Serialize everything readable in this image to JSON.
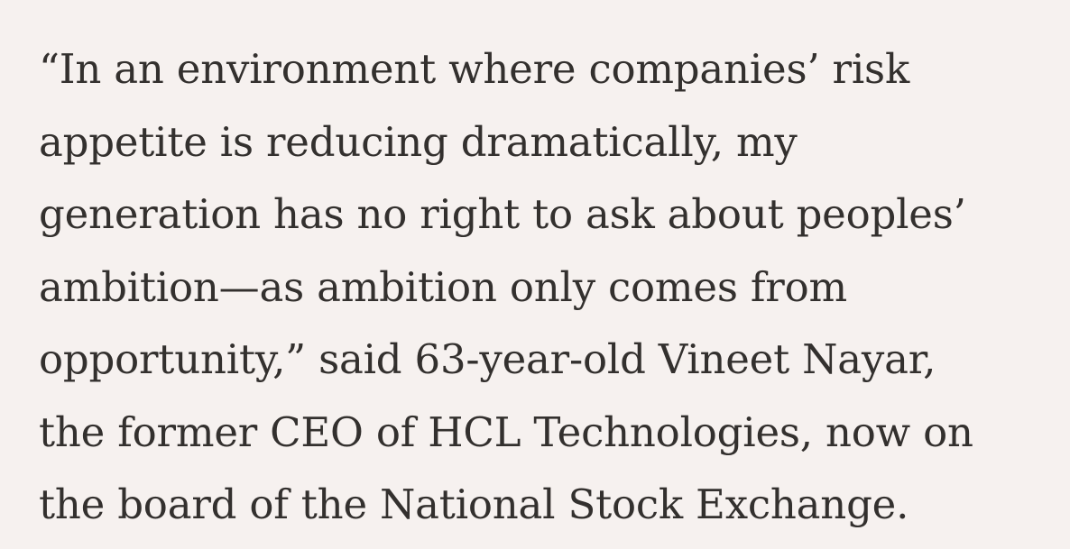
{
  "article": {
    "lines": [
      "“In an environment where companies’ risk",
      "appetite is reducing dramatically, my",
      "generation has no right to ask about peoples’",
      "ambition—as ambition only comes from",
      "opportunity,” said 63-year-old Vineet Nayar,",
      "the former CEO of HCL Technologies, now on",
      "the board of the National Stock Exchange."
    ]
  },
  "colors": {
    "background": "#f6f1ef",
    "text": "#33302e"
  }
}
